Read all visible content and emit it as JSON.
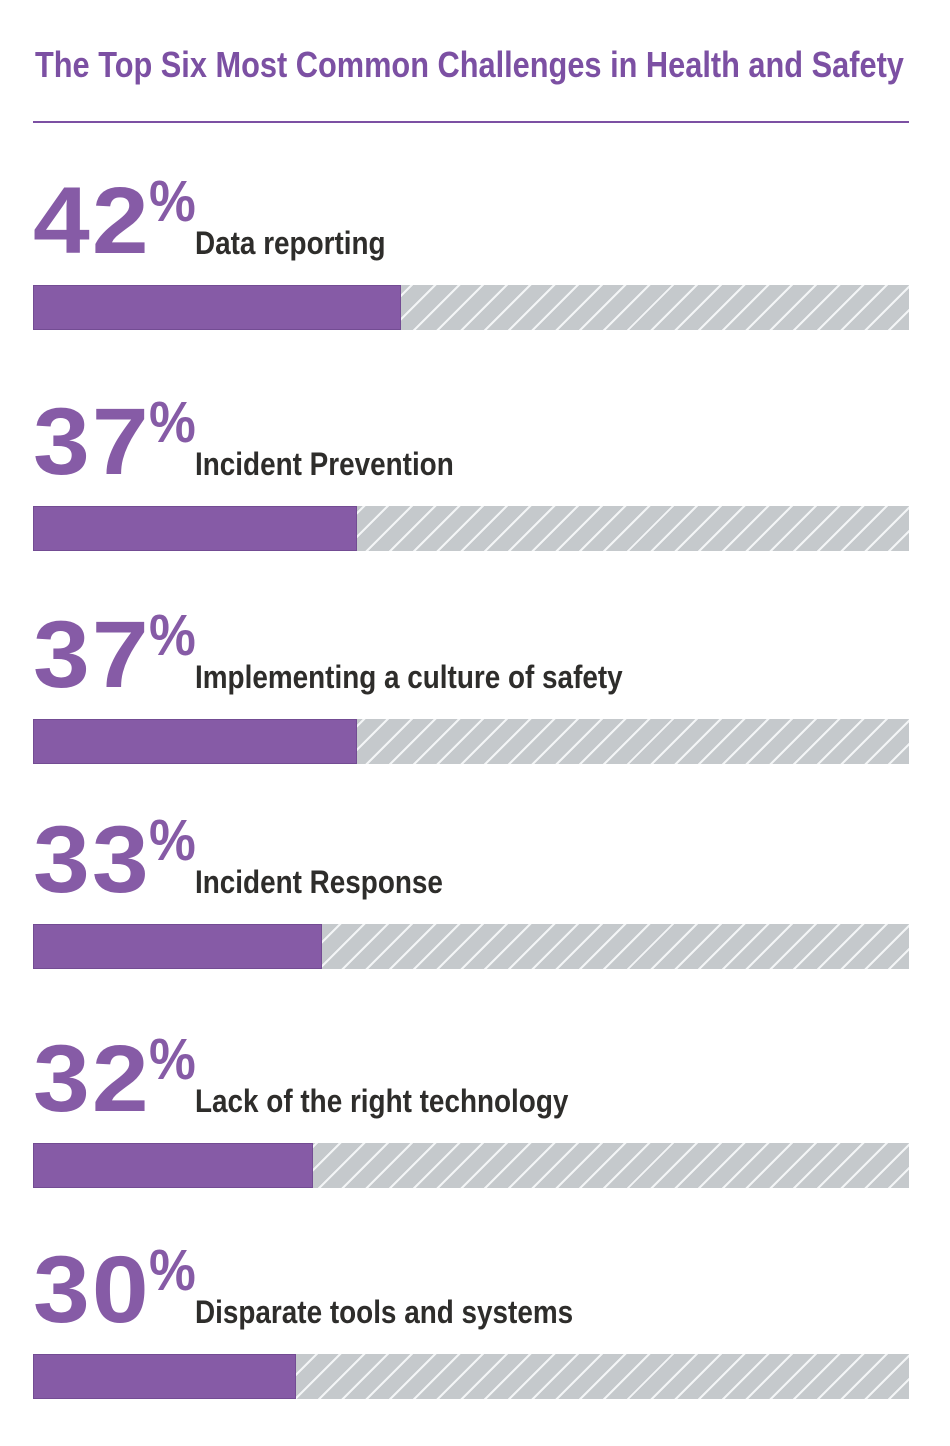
{
  "title": "The Top Six Most Common Challenges in Health and Safety",
  "colors": {
    "purple": "#865ba6",
    "purple_dark": "#7c50a3",
    "label": "#2e2d2b",
    "track_gray": "#c5c9cc",
    "hatch_line": "#f3f5f6",
    "background": "#ffffff"
  },
  "chart_data": {
    "type": "bar",
    "orientation": "horizontal",
    "title": "The Top Six Most Common Challenges in Health and Safety",
    "categories": [
      "Data reporting",
      "Incident Prevention",
      "Implementing a culture of safety",
      "Incident Response",
      "Lack of the right technology",
      "Disparate tools and systems"
    ],
    "values": [
      42,
      37,
      37,
      33,
      32,
      30
    ],
    "unit": "%",
    "xlim": [
      0,
      100
    ],
    "grid": false,
    "legend": false,
    "items": [
      {
        "value": "42",
        "suffix": "%",
        "label": "Data reporting",
        "pct": 42
      },
      {
        "value": "37",
        "suffix": "%",
        "label": "Incident Prevention",
        "pct": 37
      },
      {
        "value": "37",
        "suffix": "%",
        "label": "Implementing a culture of safety",
        "pct": 37
      },
      {
        "value": "33",
        "suffix": "%",
        "label": "Incident Response",
        "pct": 33
      },
      {
        "value": "32",
        "suffix": "%",
        "label": "Lack of the right technology",
        "pct": 32
      },
      {
        "value": "30",
        "suffix": "%",
        "label": "Disparate tools and systems",
        "pct": 30
      }
    ]
  }
}
